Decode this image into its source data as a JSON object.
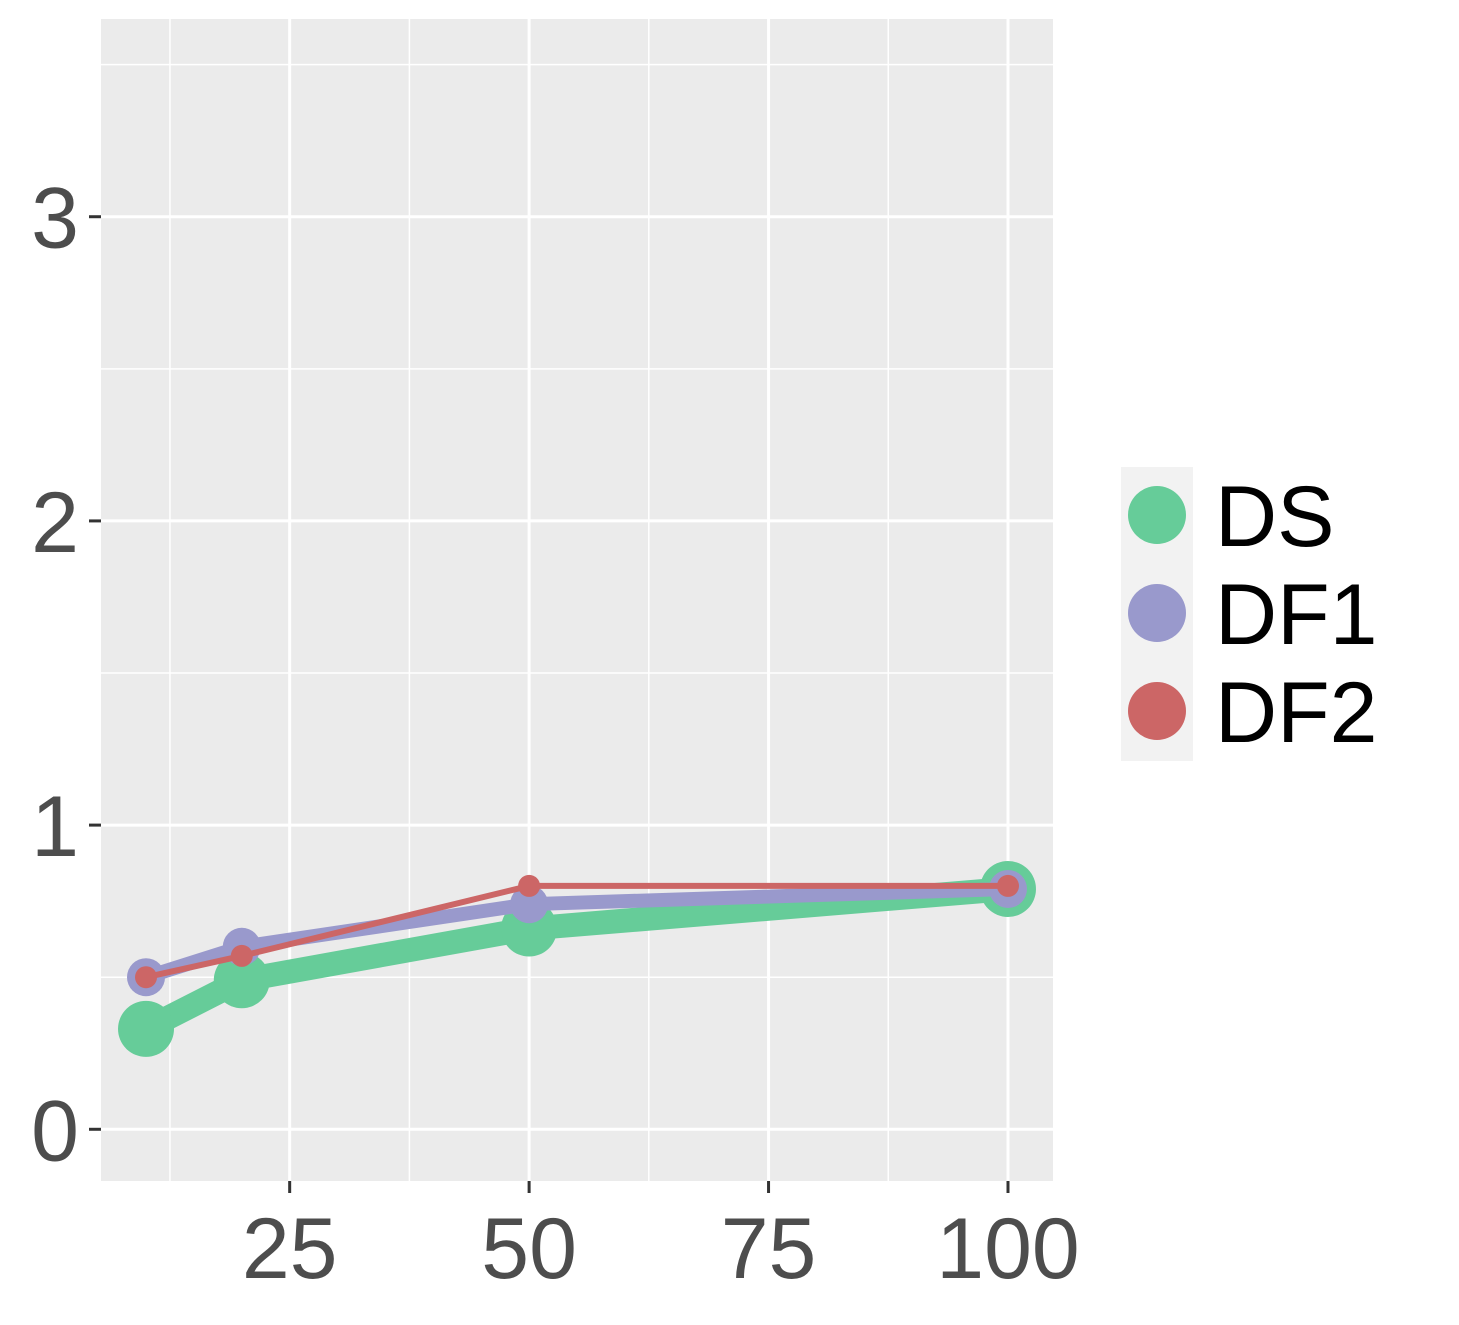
{
  "chart_data": {
    "type": "line",
    "title": "",
    "xlabel": "",
    "ylabel": "",
    "xlim": [
      5.3,
      104.7
    ],
    "ylim": [
      -0.17,
      3.65
    ],
    "x_ticks": [
      25,
      50,
      75,
      100
    ],
    "x_tick_labels": [
      "25",
      "50",
      "75",
      "100"
    ],
    "x_minor_grid": [
      12.5,
      37.5,
      62.5,
      87.5
    ],
    "y_ticks": [
      0,
      1,
      2,
      3
    ],
    "y_tick_labels": [
      "0",
      "1",
      "2",
      "3"
    ],
    "y_minor_grid": [
      0.5,
      1.5,
      2.5,
      3.5
    ],
    "grid": true,
    "legend_position": "right",
    "series": [
      {
        "name": "DS",
        "color": "#66cc99",
        "x": [
          10,
          20,
          50,
          100
        ],
        "y": [
          0.33,
          0.49,
          0.66,
          0.79
        ]
      },
      {
        "name": "DF1",
        "color": "#9999cc",
        "x": [
          10,
          20,
          50,
          100
        ],
        "y": [
          0.5,
          0.6,
          0.74,
          0.79
        ]
      },
      {
        "name": "DF2",
        "color": "#cc6666",
        "x": [
          10,
          20,
          50,
          100
        ],
        "y": [
          0.5,
          0.57,
          0.8,
          0.8
        ]
      }
    ]
  }
}
